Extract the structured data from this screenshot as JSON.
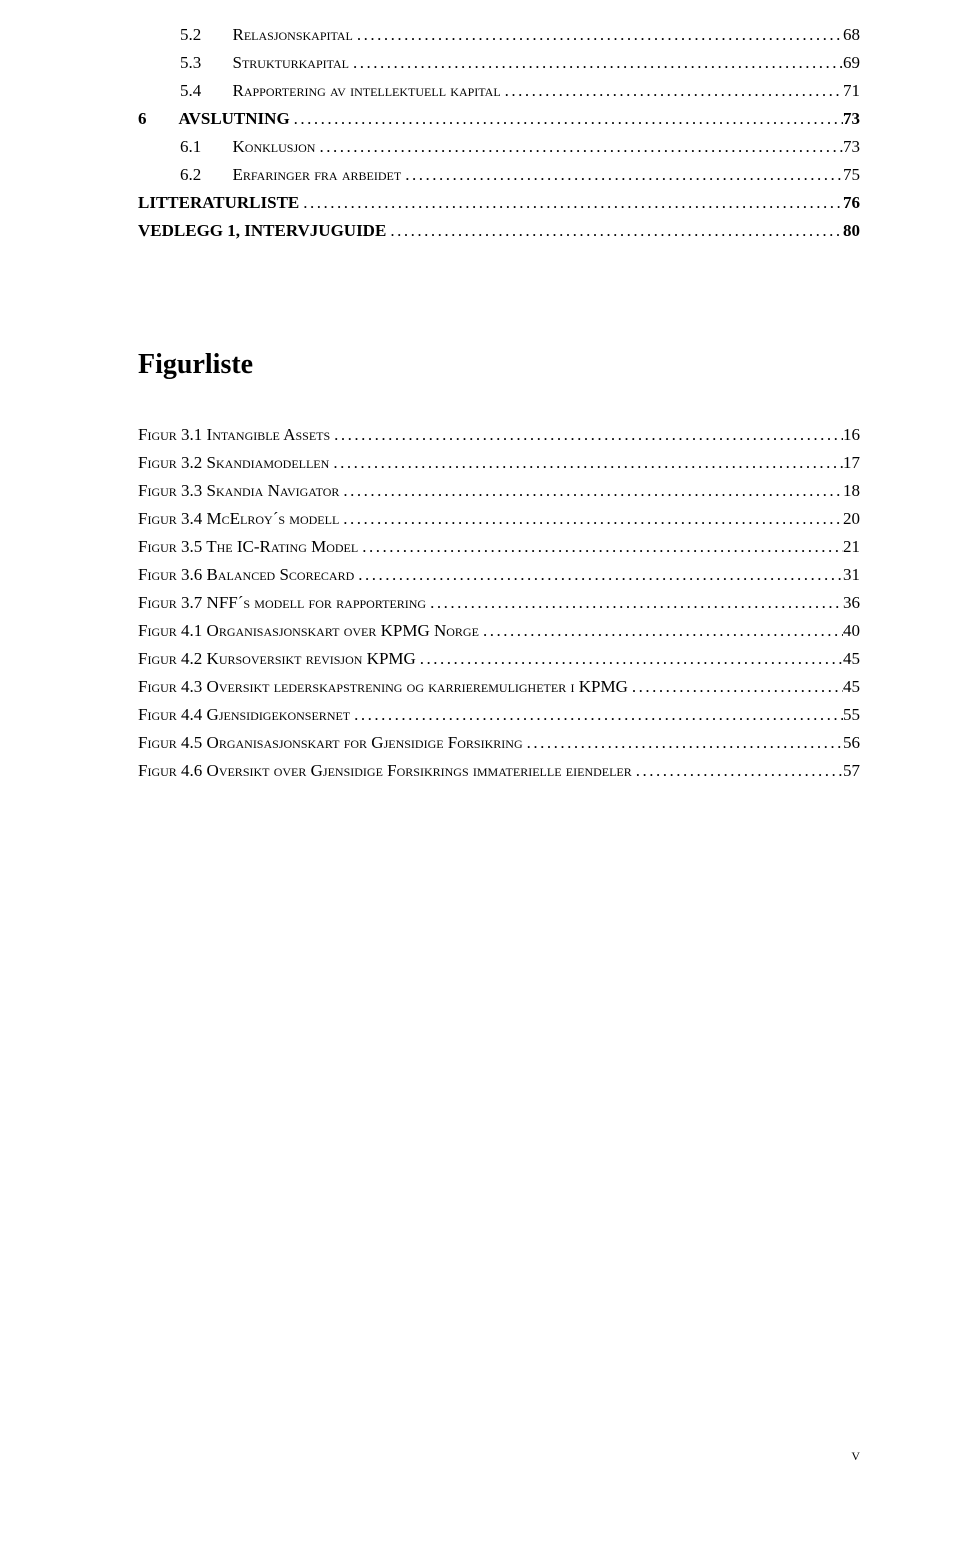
{
  "toc": [
    {
      "indent": 1,
      "bold": false,
      "num": "5.2",
      "title": "Relasjonskapital",
      "page": "68"
    },
    {
      "indent": 1,
      "bold": false,
      "num": "5.3",
      "title": "Strukturkapital",
      "page": "69"
    },
    {
      "indent": 1,
      "bold": false,
      "num": "5.4",
      "title": "Rapportering av intellektuell kapital",
      "page": "71"
    },
    {
      "indent": 0,
      "bold": true,
      "num": "6",
      "title": "AVSLUTNING",
      "page": "73"
    },
    {
      "indent": 1,
      "bold": false,
      "num": "6.1",
      "title": "Konklusjon",
      "page": "73"
    },
    {
      "indent": 1,
      "bold": false,
      "num": "6.2",
      "title": "Erfaringer fra arbeidet",
      "page": "75"
    },
    {
      "indent": 0,
      "bold": true,
      "num": "",
      "title": "LITTERATURLISTE",
      "page": "76"
    },
    {
      "indent": 0,
      "bold": true,
      "num": "",
      "title": "VEDLEGG 1, INTERVJUGUIDE",
      "page": "80"
    }
  ],
  "figurliste_heading": "Figurliste",
  "figures": [
    {
      "label": "Figur 3.1 Intangible Assets",
      "page": "16"
    },
    {
      "label": "Figur 3.2 Skandiamodellen",
      "page": "17"
    },
    {
      "label": "Figur 3.3 Skandia Navigator",
      "page": "18"
    },
    {
      "label": "Figur 3.4 McElroy´s modell",
      "page": "20"
    },
    {
      "label": "Figur 3.5 The IC-Rating Model",
      "page": "21"
    },
    {
      "label": "Figur 3.6 Balanced Scorecard",
      "page": "31"
    },
    {
      "label": "Figur 3.7 NFF´s modell for rapportering",
      "page": "36"
    },
    {
      "label": "Figur 4.1 Organisasjonskart over KPMG Norge",
      "page": "40"
    },
    {
      "label": "Figur 4.2 Kursoversikt revisjon KPMG",
      "page": "45"
    },
    {
      "label": "Figur 4.3 Oversikt lederskapstrening og karrieremuligheter i KPMG",
      "page": "45"
    },
    {
      "label": "Figur 4.4 Gjensidigekonsernet",
      "page": "55"
    },
    {
      "label": "Figur 4.5 Organisasjonskart for Gjensidige Forsikring",
      "page": "56"
    },
    {
      "label": "Figur 4.6 Oversikt over Gjensidige Forsikrings immaterielle eiendeler",
      "page": "57"
    }
  ],
  "page_number": "v"
}
